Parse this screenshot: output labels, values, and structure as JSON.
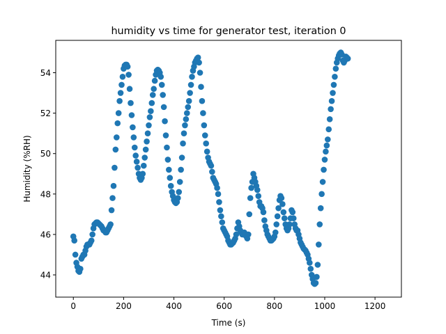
{
  "chart_data": {
    "type": "scatter",
    "title": "humidity vs time for generator test, iteration 0",
    "xlabel": "Time (s)",
    "ylabel": "Humidity (%RH)",
    "xlim": [
      -70,
      1305
    ],
    "ylim": [
      42.9,
      55.6
    ],
    "xticks": [
      0,
      200,
      400,
      600,
      800,
      1000,
      1200
    ],
    "yticks": [
      44,
      46,
      48,
      50,
      52,
      54
    ],
    "grid": false,
    "marker_color": "#1f77b4",
    "series": [
      {
        "points": [
          [
            0,
            45.9
          ],
          [
            4,
            45.7
          ],
          [
            8,
            45.0
          ],
          [
            12,
            44.6
          ],
          [
            16,
            44.4
          ],
          [
            20,
            44.2
          ],
          [
            24,
            44.15
          ],
          [
            28,
            44.3
          ],
          [
            32,
            44.8
          ],
          [
            36,
            44.9
          ],
          [
            40,
            45.0
          ],
          [
            44,
            45.0
          ],
          [
            48,
            45.2
          ],
          [
            52,
            45.4
          ],
          [
            56,
            45.5
          ],
          [
            60,
            45.5
          ],
          [
            64,
            45.5
          ],
          [
            68,
            45.6
          ],
          [
            72,
            45.7
          ],
          [
            76,
            46.0
          ],
          [
            80,
            46.3
          ],
          [
            84,
            46.5
          ],
          [
            88,
            46.55
          ],
          [
            92,
            46.6
          ],
          [
            96,
            46.6
          ],
          [
            100,
            46.55
          ],
          [
            104,
            46.5
          ],
          [
            108,
            46.45
          ],
          [
            112,
            46.4
          ],
          [
            116,
            46.3
          ],
          [
            120,
            46.2
          ],
          [
            124,
            46.2
          ],
          [
            128,
            46.1
          ],
          [
            132,
            46.1
          ],
          [
            136,
            46.2
          ],
          [
            140,
            46.3
          ],
          [
            144,
            46.4
          ],
          [
            148,
            46.5
          ],
          [
            152,
            47.2
          ],
          [
            156,
            47.8
          ],
          [
            160,
            48.4
          ],
          [
            164,
            49.3
          ],
          [
            168,
            50.2
          ],
          [
            172,
            50.8
          ],
          [
            176,
            51.5
          ],
          [
            180,
            52.0
          ],
          [
            184,
            52.6
          ],
          [
            188,
            53.0
          ],
          [
            192,
            53.4
          ],
          [
            196,
            53.8
          ],
          [
            200,
            54.2
          ],
          [
            204,
            54.35
          ],
          [
            208,
            54.4
          ],
          [
            212,
            54.4
          ],
          [
            216,
            54.3
          ],
          [
            220,
            53.9
          ],
          [
            224,
            53.2
          ],
          [
            228,
            52.5
          ],
          [
            232,
            51.9
          ],
          [
            236,
            51.3
          ],
          [
            240,
            50.8
          ],
          [
            244,
            50.3
          ],
          [
            248,
            49.9
          ],
          [
            252,
            49.6
          ],
          [
            256,
            49.3
          ],
          [
            260,
            49.0
          ],
          [
            264,
            48.8
          ],
          [
            268,
            48.7
          ],
          [
            272,
            48.8
          ],
          [
            276,
            49.0
          ],
          [
            280,
            49.4
          ],
          [
            284,
            49.8
          ],
          [
            288,
            50.2
          ],
          [
            292,
            50.6
          ],
          [
            296,
            51.0
          ],
          [
            300,
            51.4
          ],
          [
            304,
            51.8
          ],
          [
            308,
            52.1
          ],
          [
            312,
            52.5
          ],
          [
            316,
            52.9
          ],
          [
            320,
            53.2
          ],
          [
            324,
            53.6
          ],
          [
            328,
            53.9
          ],
          [
            332,
            54.1
          ],
          [
            336,
            54.15
          ],
          [
            340,
            54.1
          ],
          [
            344,
            54.0
          ],
          [
            348,
            53.8
          ],
          [
            352,
            53.4
          ],
          [
            356,
            52.9
          ],
          [
            360,
            52.3
          ],
          [
            364,
            51.6
          ],
          [
            368,
            50.9
          ],
          [
            372,
            50.3
          ],
          [
            376,
            49.7
          ],
          [
            380,
            49.2
          ],
          [
            384,
            48.8
          ],
          [
            388,
            48.4
          ],
          [
            392,
            48.1
          ],
          [
            396,
            47.9
          ],
          [
            400,
            47.7
          ],
          [
            404,
            47.6
          ],
          [
            408,
            47.55
          ],
          [
            412,
            47.6
          ],
          [
            416,
            47.8
          ],
          [
            420,
            48.1
          ],
          [
            424,
            48.6
          ],
          [
            428,
            49.2
          ],
          [
            432,
            49.8
          ],
          [
            436,
            50.5
          ],
          [
            440,
            51.0
          ],
          [
            444,
            51.4
          ],
          [
            448,
            51.7
          ],
          [
            452,
            52.0
          ],
          [
            456,
            52.3
          ],
          [
            460,
            52.6
          ],
          [
            464,
            53.0
          ],
          [
            468,
            53.4
          ],
          [
            472,
            53.8
          ],
          [
            476,
            54.1
          ],
          [
            480,
            54.3
          ],
          [
            484,
            54.5
          ],
          [
            488,
            54.6
          ],
          [
            492,
            54.7
          ],
          [
            496,
            54.75
          ],
          [
            500,
            54.5
          ],
          [
            504,
            54.0
          ],
          [
            508,
            53.3
          ],
          [
            512,
            52.6
          ],
          [
            516,
            52.0
          ],
          [
            520,
            51.4
          ],
          [
            524,
            50.9
          ],
          [
            528,
            50.5
          ],
          [
            532,
            50.1
          ],
          [
            536,
            49.8
          ],
          [
            540,
            49.6
          ],
          [
            544,
            49.5
          ],
          [
            548,
            49.4
          ],
          [
            552,
            49.1
          ],
          [
            556,
            48.8
          ],
          [
            560,
            48.7
          ],
          [
            564,
            48.6
          ],
          [
            568,
            48.5
          ],
          [
            572,
            48.3
          ],
          [
            576,
            48.0
          ],
          [
            580,
            47.6
          ],
          [
            584,
            47.2
          ],
          [
            588,
            46.9
          ],
          [
            592,
            46.6
          ],
          [
            596,
            46.3
          ],
          [
            600,
            46.2
          ],
          [
            604,
            46.1
          ],
          [
            608,
            46.0
          ],
          [
            612,
            45.9
          ],
          [
            616,
            45.7
          ],
          [
            620,
            45.6
          ],
          [
            624,
            45.5
          ],
          [
            628,
            45.5
          ],
          [
            632,
            45.55
          ],
          [
            636,
            45.6
          ],
          [
            640,
            45.7
          ],
          [
            644,
            45.8
          ],
          [
            648,
            46.0
          ],
          [
            652,
            46.3
          ],
          [
            656,
            46.6
          ],
          [
            660,
            46.4
          ],
          [
            664,
            46.2
          ],
          [
            668,
            46.1
          ],
          [
            672,
            46.0
          ],
          [
            676,
            46.0
          ],
          [
            680,
            46.1
          ],
          [
            684,
            46.0
          ],
          [
            688,
            45.9
          ],
          [
            692,
            45.8
          ],
          [
            696,
            46.0
          ],
          [
            700,
            47.0
          ],
          [
            704,
            47.8
          ],
          [
            708,
            48.3
          ],
          [
            712,
            48.6
          ],
          [
            716,
            49.0
          ],
          [
            720,
            48.8
          ],
          [
            724,
            48.6
          ],
          [
            728,
            48.4
          ],
          [
            732,
            48.2
          ],
          [
            736,
            47.9
          ],
          [
            740,
            47.6
          ],
          [
            744,
            47.4
          ],
          [
            748,
            47.4
          ],
          [
            752,
            47.3
          ],
          [
            756,
            47.1
          ],
          [
            760,
            46.7
          ],
          [
            764,
            46.4
          ],
          [
            768,
            46.2
          ],
          [
            772,
            46.0
          ],
          [
            776,
            45.9
          ],
          [
            780,
            45.8
          ],
          [
            784,
            45.7
          ],
          [
            788,
            45.7
          ],
          [
            792,
            45.75
          ],
          [
            796,
            45.8
          ],
          [
            800,
            45.9
          ],
          [
            804,
            46.1
          ],
          [
            808,
            46.5
          ],
          [
            812,
            46.9
          ],
          [
            816,
            47.3
          ],
          [
            820,
            47.7
          ],
          [
            824,
            47.9
          ],
          [
            828,
            47.8
          ],
          [
            832,
            47.5
          ],
          [
            836,
            47.1
          ],
          [
            840,
            46.8
          ],
          [
            844,
            46.5
          ],
          [
            848,
            46.3
          ],
          [
            852,
            46.2
          ],
          [
            856,
            46.3
          ],
          [
            860,
            46.5
          ],
          [
            864,
            46.8
          ],
          [
            868,
            47.2
          ],
          [
            872,
            47.1
          ],
          [
            876,
            46.8
          ],
          [
            880,
            46.5
          ],
          [
            884,
            46.3
          ],
          [
            888,
            46.2
          ],
          [
            892,
            46.2
          ],
          [
            896,
            46.0
          ],
          [
            900,
            45.8
          ],
          [
            904,
            45.6
          ],
          [
            908,
            45.5
          ],
          [
            912,
            45.4
          ],
          [
            916,
            45.3
          ],
          [
            920,
            45.25
          ],
          [
            924,
            45.2
          ],
          [
            928,
            45.1
          ],
          [
            932,
            45.0
          ],
          [
            936,
            44.8
          ],
          [
            940,
            44.6
          ],
          [
            944,
            44.3
          ],
          [
            948,
            44.0
          ],
          [
            952,
            43.8
          ],
          [
            956,
            43.6
          ],
          [
            960,
            43.55
          ],
          [
            964,
            43.6
          ],
          [
            968,
            43.9
          ],
          [
            972,
            44.5
          ],
          [
            976,
            45.5
          ],
          [
            980,
            46.5
          ],
          [
            984,
            47.3
          ],
          [
            988,
            48.0
          ],
          [
            992,
            48.6
          ],
          [
            996,
            49.2
          ],
          [
            1000,
            49.7
          ],
          [
            1004,
            50.1
          ],
          [
            1008,
            50.4
          ],
          [
            1012,
            50.7
          ],
          [
            1016,
            51.2
          ],
          [
            1020,
            51.7
          ],
          [
            1024,
            52.2
          ],
          [
            1028,
            52.6
          ],
          [
            1032,
            53.0
          ],
          [
            1036,
            53.4
          ],
          [
            1040,
            53.8
          ],
          [
            1044,
            54.2
          ],
          [
            1048,
            54.5
          ],
          [
            1052,
            54.7
          ],
          [
            1056,
            54.85
          ],
          [
            1060,
            54.95
          ],
          [
            1064,
            55.0
          ],
          [
            1068,
            54.9
          ],
          [
            1072,
            54.6
          ],
          [
            1076,
            54.5
          ],
          [
            1080,
            54.6
          ],
          [
            1084,
            54.8
          ],
          [
            1088,
            54.75
          ],
          [
            1092,
            54.7
          ]
        ]
      }
    ]
  }
}
